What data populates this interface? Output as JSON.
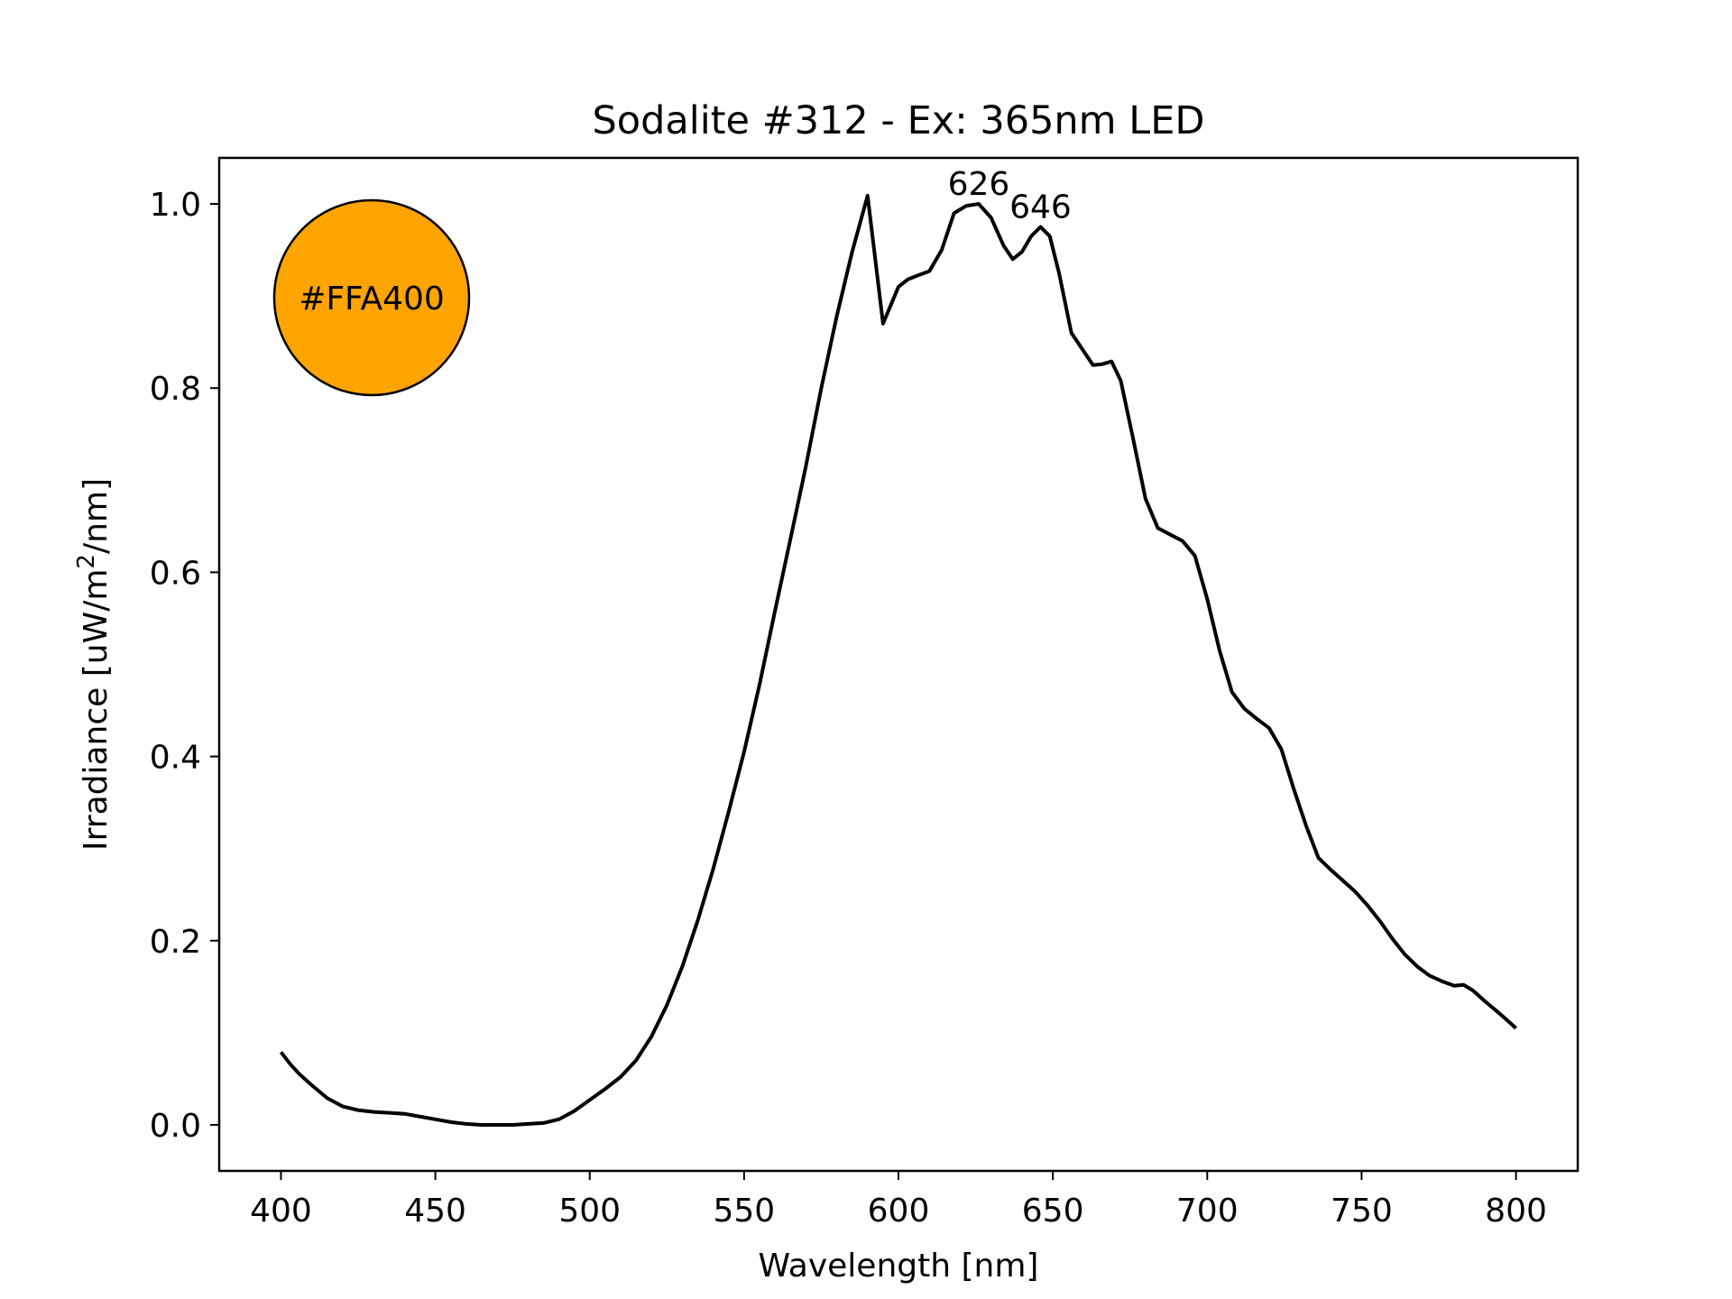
{
  "chart_data": {
    "type": "line",
    "title": "Sodalite #312 - Ex: 365nm LED",
    "xlabel": "Wavelength [nm]",
    "ylabel_main": "Irradiance [uW/m",
    "ylabel_sup": "2",
    "ylabel_tail": "/nm]",
    "xlim": [
      380,
      820
    ],
    "ylim": [
      -0.05,
      1.05
    ],
    "xticks": [
      400,
      450,
      500,
      550,
      600,
      650,
      700,
      750,
      800
    ],
    "yticks": [
      0.0,
      0.2,
      0.4,
      0.6,
      0.8,
      1.0
    ],
    "ytick_labels": [
      "0.0",
      "0.2",
      "0.4",
      "0.6",
      "0.8",
      "1.0"
    ],
    "grid": false,
    "line_color": "#000000",
    "swatch": {
      "color": "#FFA400",
      "label": "#FFA400"
    },
    "peaks": [
      {
        "x": 626,
        "y": 1.0,
        "label": "626"
      },
      {
        "x": 646,
        "y": 0.975,
        "label": "646"
      }
    ],
    "series": [
      {
        "x": [
          400,
          403,
          406,
          410,
          415,
          420,
          425,
          430,
          435,
          440,
          445,
          450,
          455,
          460,
          465,
          470,
          475,
          480,
          485,
          490,
          495,
          500,
          505,
          510,
          515,
          520,
          525,
          530,
          535,
          540,
          545,
          550,
          555,
          560,
          565,
          570,
          575,
          580,
          585,
          590,
          595,
          600,
          603,
          606,
          610,
          614,
          618,
          622,
          626,
          630,
          634,
          637,
          640,
          643,
          646,
          649,
          652,
          656,
          660,
          663,
          666,
          669,
          672,
          676,
          680,
          684,
          688,
          692,
          696,
          700,
          704,
          708,
          712,
          716,
          720,
          724,
          728,
          732,
          736,
          740,
          744,
          748,
          752,
          756,
          760,
          764,
          768,
          772,
          776,
          780,
          783,
          786,
          790,
          795,
          800
        ],
        "y": [
          0.079,
          0.066,
          0.055,
          0.043,
          0.029,
          0.02,
          0.016,
          0.014,
          0.013,
          0.012,
          0.009,
          0.006,
          0.003,
          0.001,
          0.0,
          0.0,
          0.0,
          0.001,
          0.002,
          0.006,
          0.015,
          0.027,
          0.039,
          0.052,
          0.07,
          0.096,
          0.13,
          0.172,
          0.222,
          0.278,
          0.34,
          0.405,
          0.478,
          0.558,
          0.636,
          0.715,
          0.8,
          0.878,
          0.948,
          1.009,
          0.87,
          0.91,
          0.918,
          0.922,
          0.927,
          0.95,
          0.99,
          0.998,
          1.0,
          0.985,
          0.955,
          0.94,
          0.948,
          0.965,
          0.975,
          0.965,
          0.925,
          0.86,
          0.84,
          0.825,
          0.826,
          0.829,
          0.808,
          0.745,
          0.68,
          0.648,
          0.641,
          0.634,
          0.618,
          0.571,
          0.515,
          0.47,
          0.452,
          0.441,
          0.431,
          0.408,
          0.365,
          0.325,
          0.29,
          0.277,
          0.265,
          0.253,
          0.238,
          0.221,
          0.202,
          0.185,
          0.172,
          0.162,
          0.156,
          0.151,
          0.152,
          0.146,
          0.134,
          0.12,
          0.105
        ]
      }
    ]
  }
}
